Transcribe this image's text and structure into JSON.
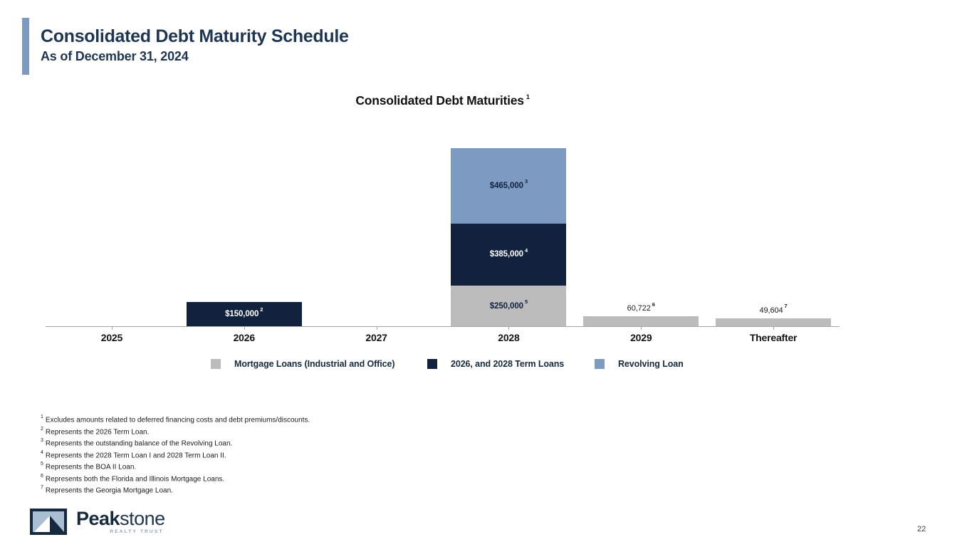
{
  "slide": {
    "title": "Consolidated Debt Maturity Schedule",
    "subtitle": "As of December 31, 2024",
    "page_number": "22"
  },
  "chart_data": {
    "type": "bar",
    "stacked": true,
    "title": "Consolidated Debt Maturities",
    "title_footnote": "1",
    "categories": [
      "2025",
      "2026",
      "2027",
      "2028",
      "2029",
      "Thereafter"
    ],
    "series": [
      {
        "name": "Mortgage Loans  (Industrial and Office)",
        "color": "#bcbcbc",
        "values": [
          0,
          0,
          0,
          250000,
          60722,
          49604
        ]
      },
      {
        "name": "2026, and 2028 Term Loans",
        "color": "#12213d",
        "values": [
          0,
          150000,
          0,
          385000,
          0,
          0
        ]
      },
      {
        "name": "Revolving Loan",
        "color": "#7d9ac2",
        "values": [
          0,
          0,
          0,
          465000,
          0,
          0
        ]
      }
    ],
    "ylim": [
      0,
      1100000
    ],
    "grid": false,
    "legend_position": "bottom",
    "data_labels": [
      {
        "category_index": 1,
        "series_index": 1,
        "text": "$150,000",
        "footnote": "2",
        "placement": "inside",
        "color": "#ffffff"
      },
      {
        "category_index": 3,
        "series_index": 2,
        "text": "$465,000",
        "footnote": "3",
        "placement": "inside",
        "color": "#12213d"
      },
      {
        "category_index": 3,
        "series_index": 1,
        "text": "$385,000",
        "footnote": "4",
        "placement": "inside",
        "color": "#ffffff"
      },
      {
        "category_index": 3,
        "series_index": 0,
        "text": "$250,000",
        "footnote": "5",
        "placement": "inside",
        "color": "#12213d"
      },
      {
        "category_index": 4,
        "series_index": 0,
        "text": "60,722",
        "footnote": "6",
        "placement": "above",
        "color": "#1a1a1a"
      },
      {
        "category_index": 5,
        "series_index": 0,
        "text": "49,604",
        "footnote": "7",
        "placement": "above",
        "color": "#1a1a1a"
      }
    ]
  },
  "footnotes": [
    {
      "num": "1",
      "text": "Excludes amounts related to deferred financing costs and debt premiums/discounts."
    },
    {
      "num": "2",
      "text": "Represents the 2026 Term Loan."
    },
    {
      "num": "3",
      "text": "Represents the outstanding balance of the Revolving Loan."
    },
    {
      "num": "4",
      "text": "Represents the 2028 Term Loan I and 2028 Term Loan II."
    },
    {
      "num": "5",
      "text": "Represents the BOA II Loan."
    },
    {
      "num": "6",
      "text": "Represents both the Florida and Illinois Mortgage Loans."
    },
    {
      "num": "7",
      "text": "Represents the Georgia Mortgage Loan."
    }
  ],
  "logo": {
    "brand_bold": "Peak",
    "brand_light": "stone",
    "tagline": "REALTY TRUST"
  },
  "colors": {
    "accent_bar": "#7d9ac2",
    "title_navy": "#1e3553",
    "legend_text": "#16293f",
    "axis_line": "#a6a6a6"
  }
}
